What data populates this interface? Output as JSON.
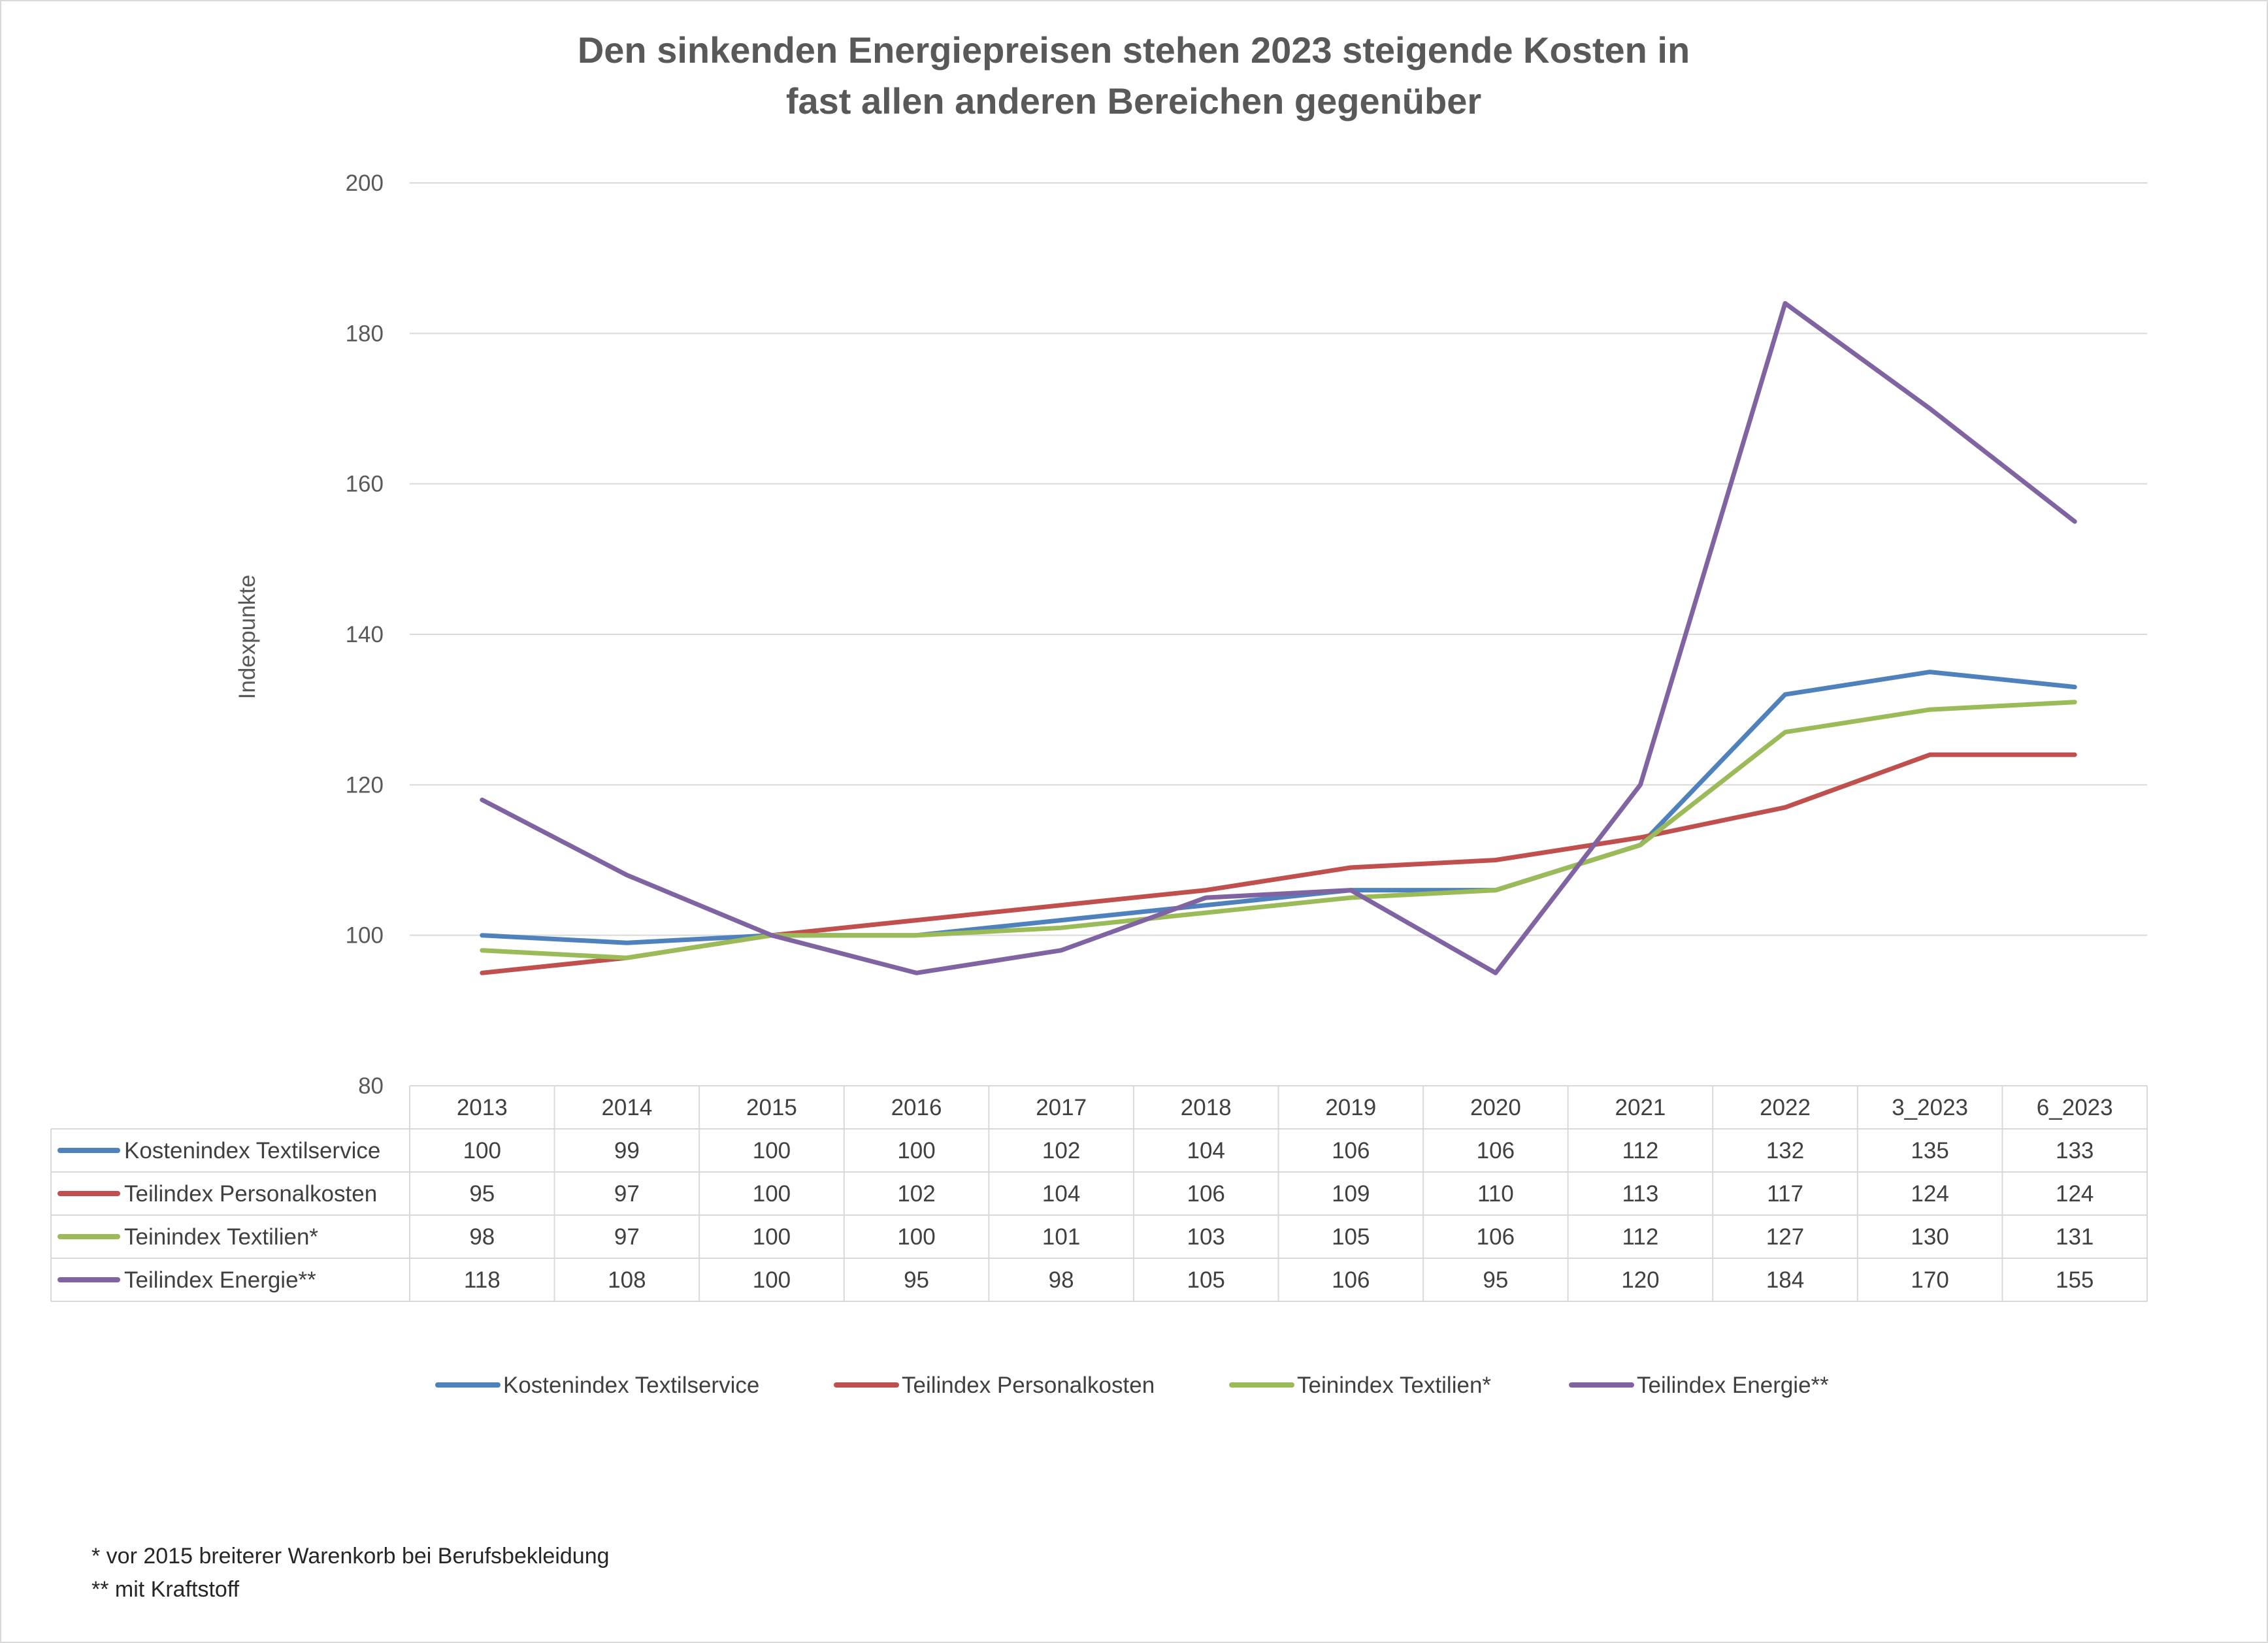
{
  "chart_data": {
    "type": "line",
    "title_lines": [
      "Den sinkenden Energiepreisen stehen 2023 steigende Kosten in",
      "fast allen anderen Bereichen gegenüber"
    ],
    "ylabel": "Indexpunkte",
    "xlabel": "",
    "ylim": [
      80,
      200
    ],
    "yticks": [
      80,
      100,
      120,
      140,
      160,
      180,
      200
    ],
    "grid": true,
    "legend_position": "bottom",
    "categories": [
      "2013",
      "2014",
      "2015",
      "2016",
      "2017",
      "2018",
      "2019",
      "2020",
      "2021",
      "2022",
      "3_2023",
      "6_2023"
    ],
    "series": [
      {
        "name": "Kostenindex Textilservice",
        "color": "#4f81bd",
        "values": [
          100,
          99,
          100,
          100,
          102,
          104,
          106,
          106,
          112,
          132,
          135,
          133
        ]
      },
      {
        "name": "Teilindex Personalkosten",
        "color": "#c0504d",
        "values": [
          95,
          97,
          100,
          102,
          104,
          106,
          109,
          110,
          113,
          117,
          124,
          124
        ]
      },
      {
        "name": "Teinindex Textilien*",
        "color": "#9bbb59",
        "values": [
          98,
          97,
          100,
          100,
          101,
          103,
          105,
          106,
          112,
          127,
          130,
          131
        ]
      },
      {
        "name": "Teilindex Energie**",
        "color": "#8064a2",
        "values": [
          118,
          108,
          100,
          95,
          98,
          105,
          106,
          95,
          120,
          184,
          170,
          155
        ]
      }
    ]
  },
  "footnotes": {
    "note1": "* vor 2015 breiterer Warenkorb bei Berufsbekleidung",
    "note2": "** mit Kraftstoff"
  }
}
